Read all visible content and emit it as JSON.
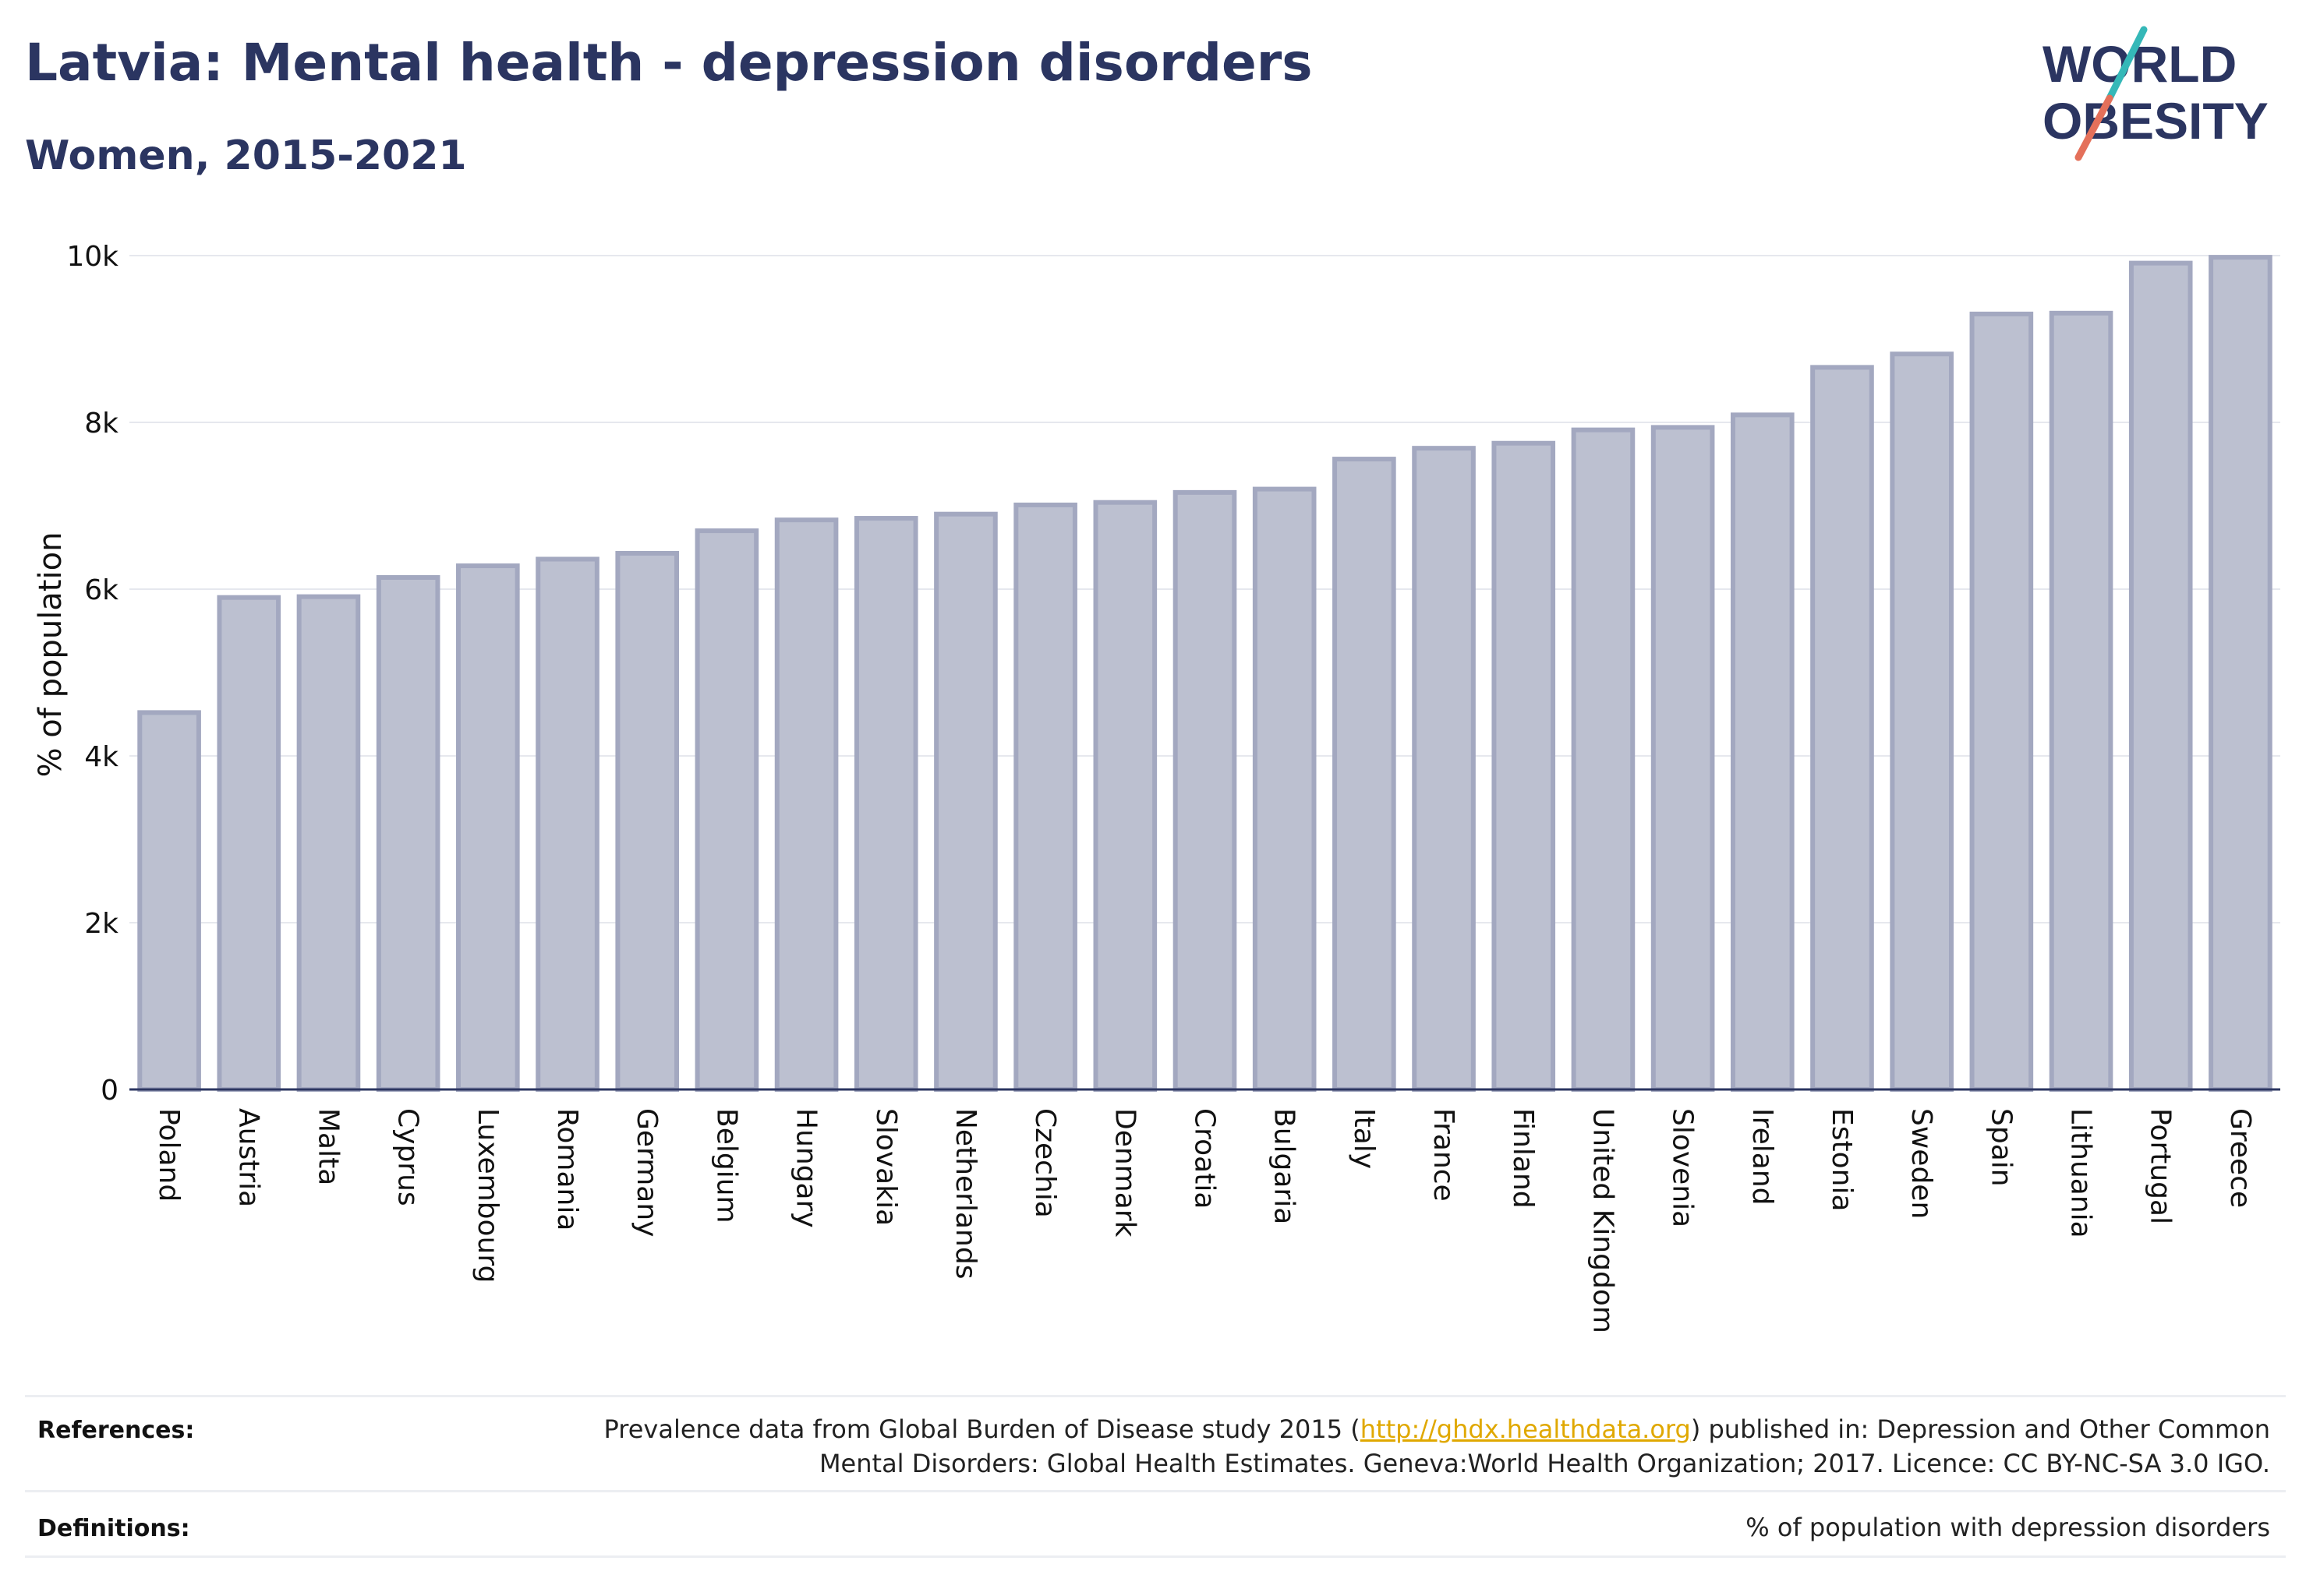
{
  "header": {
    "title": "Latvia: Mental health - depression disorders",
    "subtitle": "Women, 2015-2021"
  },
  "logo": {
    "line1": "WORLD",
    "line2": "OBESITY"
  },
  "chart_data": {
    "type": "bar",
    "ylabel": "% of population",
    "xlabel": "",
    "ylim": [
      0,
      10000
    ],
    "yticks": [
      0,
      2000,
      4000,
      6000,
      8000,
      10000
    ],
    "ytick_labels": [
      "0",
      "2k",
      "4k",
      "6k",
      "8k",
      "10k"
    ],
    "grid": true,
    "categories": [
      "Poland",
      "Austria",
      "Malta",
      "Cyprus",
      "Luxembourg",
      "Romania",
      "Germany",
      "Belgium",
      "Hungary",
      "Slovakia",
      "Netherlands",
      "Czechia",
      "Denmark",
      "Croatia",
      "Bulgaria",
      "Italy",
      "France",
      "Finland",
      "United Kingdom",
      "Slovenia",
      "Ireland",
      "Estonia",
      "Sweden",
      "Spain",
      "Lithuania",
      "Portugal",
      "Greece"
    ],
    "values": [
      4520,
      5900,
      5910,
      6140,
      6280,
      6360,
      6430,
      6700,
      6830,
      6850,
      6900,
      7010,
      7040,
      7160,
      7200,
      7560,
      7690,
      7750,
      7910,
      7940,
      8090,
      8660,
      8820,
      9300,
      9310,
      9910,
      9980
    ],
    "bar_fill": "#bcc0d0",
    "bar_stroke": "#a3a8c0",
    "axis_color": "#2b3561",
    "grid_color": "#e6e8ee"
  },
  "references": {
    "label": "References:",
    "line1_pre": "Prevalence data from Global Burden of Disease study 2015 (",
    "link": "http://ghdx.healthdata.org",
    "line1_post": ") published in: Depression and Other Common",
    "line2": "Mental Disorders: Global Health Estimates. Geneva:World Health Organization; 2017. Licence: CC BY-NC-SA 3.0 IGO."
  },
  "definitions": {
    "label": "Definitions:",
    "text": "% of population with depression disorders"
  }
}
